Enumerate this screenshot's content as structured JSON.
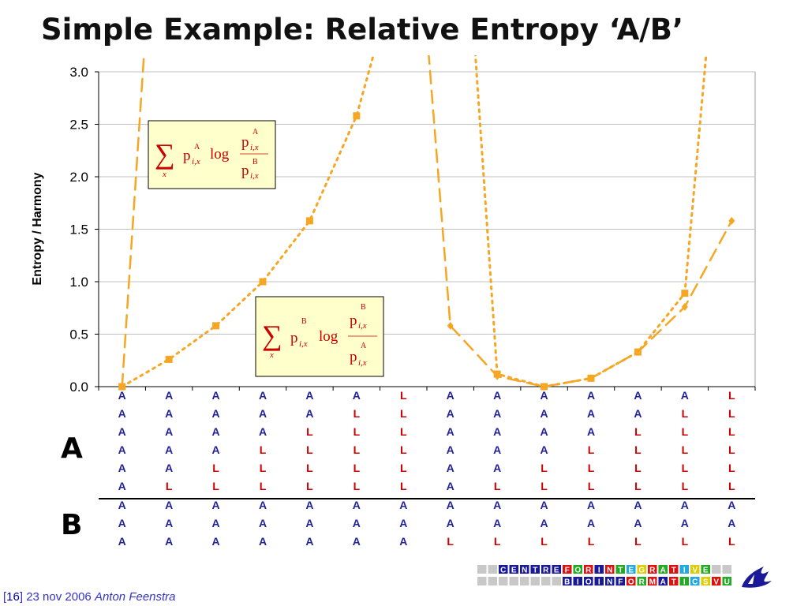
{
  "slide": {
    "title": "Simple Example: Relative Entropy ‘A/B’"
  },
  "chart_data": {
    "type": "line",
    "ylabel": "Entropy / Harmony",
    "ylim": [
      0,
      3
    ],
    "yticks": [
      "0.0",
      "0.5",
      "1.0",
      "1.5",
      "2.0",
      "2.5",
      "3.0"
    ],
    "grid": true,
    "columns": 14,
    "series": [
      {
        "style": "dotted",
        "marker": "square",
        "values": [
          0.0,
          0.26,
          0.58,
          1.0,
          1.58,
          2.58,
          null,
          null,
          0.12,
          0.0,
          0.08,
          0.33,
          0.89,
          null
        ]
      },
      {
        "style": "dashed",
        "marker": "diamond",
        "values": [
          0.0,
          null,
          null,
          null,
          null,
          null,
          null,
          0.58,
          0.1,
          0.0,
          0.08,
          0.33,
          0.76,
          1.58
        ]
      }
    ],
    "formulas": [
      {
        "sum_index": "x",
        "p": "p",
        "sub": "i,x",
        "weight_sup": "A",
        "num_sup": "A",
        "den_sup": "B",
        "log": "log"
      },
      {
        "sum_index": "x",
        "p": "p",
        "sub": "i,x",
        "weight_sup": "B",
        "num_sup": "B",
        "den_sup": "A",
        "log": "log"
      }
    ],
    "columns_A": [
      [
        "A",
        "A",
        "A",
        "A",
        "A",
        "A"
      ],
      [
        "A",
        "A",
        "A",
        "A",
        "A",
        "L"
      ],
      [
        "A",
        "A",
        "A",
        "A",
        "L",
        "L"
      ],
      [
        "A",
        "A",
        "A",
        "L",
        "L",
        "L"
      ],
      [
        "A",
        "A",
        "L",
        "L",
        "L",
        "L"
      ],
      [
        "A",
        "L",
        "L",
        "L",
        "L",
        "L"
      ],
      [
        "L",
        "L",
        "L",
        "L",
        "L",
        "L"
      ],
      [
        "A",
        "A",
        "A",
        "A",
        "A",
        "A"
      ],
      [
        "A",
        "A",
        "A",
        "A",
        "A",
        "L"
      ],
      [
        "A",
        "A",
        "A",
        "A",
        "L",
        "L"
      ],
      [
        "A",
        "A",
        "A",
        "L",
        "L",
        "L"
      ],
      [
        "A",
        "A",
        "L",
        "L",
        "L",
        "L"
      ],
      [
        "A",
        "L",
        "L",
        "L",
        "L",
        "L"
      ],
      [
        "L",
        "L",
        "L",
        "L",
        "L",
        "L"
      ]
    ],
    "columns_B": [
      [
        "A",
        "A",
        "A"
      ],
      [
        "A",
        "A",
        "A"
      ],
      [
        "A",
        "A",
        "A"
      ],
      [
        "A",
        "A",
        "A"
      ],
      [
        "A",
        "A",
        "A"
      ],
      [
        "A",
        "A",
        "A"
      ],
      [
        "A",
        "A",
        "A"
      ],
      [
        "A",
        "A",
        "L"
      ],
      [
        "A",
        "A",
        "L"
      ],
      [
        "A",
        "A",
        "L"
      ],
      [
        "A",
        "A",
        "L"
      ],
      [
        "A",
        "A",
        "L"
      ],
      [
        "A",
        "A",
        "L"
      ],
      [
        "A",
        "A",
        "L"
      ]
    ],
    "letter_colors": {
      "A": "#222299",
      "L": "#cc0000"
    },
    "line_color": "#f5a623"
  },
  "labels": {
    "A": "A",
    "B": "B"
  },
  "footer": {
    "open": "[",
    "page": "16",
    "close": "]",
    "date": "23 nov 2006",
    "author": "Anton Feenstra"
  },
  "logo": {
    "row1": [
      "C",
      "E",
      "N",
      "T",
      "R",
      "E",
      "F",
      "O",
      "R",
      "I",
      "N",
      "T",
      "E",
      "G",
      "R",
      "A",
      "T",
      "I",
      "V",
      "E"
    ],
    "row2": [
      "B",
      "I",
      "O",
      "I",
      "N",
      "F",
      "O",
      "R",
      "M",
      "A",
      "T",
      "I",
      "C",
      "S",
      "V",
      "U"
    ],
    "colors": {
      "dark": "#1a1a99",
      "red": "#dd1111",
      "green": "#22aa22",
      "yellow": "#ddcc00",
      "cyan": "#22aadd",
      "gray": "#c8c8c8"
    }
  }
}
